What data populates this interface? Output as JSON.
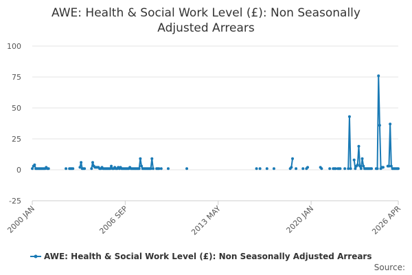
{
  "chart_data": {
    "type": "line",
    "title": "AWE: Health & Social Work Level (£): Non Seasonally Adjusted Arrears",
    "source": "Source:",
    "x": [
      "2000 JAN",
      "2000 FEB",
      "2000 MAR",
      "2000 APR",
      "2000 MAY",
      "2000 JUN",
      "2000 JUL",
      "2000 AUG",
      "2000 SEP",
      "2000 OCT",
      "2000 NOV",
      "2000 DEC",
      "2001 JAN",
      "2001 FEB",
      "2001 MAR",
      "2001 APR",
      "2001 MAY",
      "2001 JUN",
      "2001 JUL",
      "2001 AUG",
      "2001 SEP",
      "2001 OCT",
      "2001 NOV",
      "2001 DEC",
      "2002 JAN",
      "2002 FEB",
      "2002 MAR",
      "2002 APR",
      "2002 MAY",
      "2002 JUN",
      "2002 JUL",
      "2002 AUG",
      "2002 SEP",
      "2002 OCT",
      "2002 NOV",
      "2002 DEC",
      "2003 JAN",
      "2003 FEB",
      "2003 MAR",
      "2003 APR",
      "2003 MAY",
      "2003 JUN",
      "2003 JUL",
      "2003 AUG",
      "2003 SEP",
      "2003 OCT",
      "2003 NOV",
      "2003 DEC",
      "2004 JAN",
      "2004 FEB",
      "2004 MAR",
      "2004 APR",
      "2004 MAY",
      "2004 JUN",
      "2004 JUL",
      "2004 AUG",
      "2004 SEP",
      "2004 OCT",
      "2004 NOV",
      "2004 DEC",
      "2005 JAN",
      "2005 FEB",
      "2005 MAR",
      "2005 APR",
      "2005 MAY",
      "2005 JUN",
      "2005 JUL",
      "2005 AUG",
      "2005 SEP",
      "2005 OCT",
      "2005 NOV",
      "2005 DEC",
      "2006 JAN",
      "2006 FEB",
      "2006 MAR",
      "2006 APR",
      "2006 MAY",
      "2006 JUN",
      "2006 JUL",
      "2006 AUG",
      "2006 SEP",
      "2006 OCT",
      "2006 NOV",
      "2006 DEC",
      "2007 JAN",
      "2007 FEB",
      "2007 MAR",
      "2007 APR",
      "2007 MAY",
      "2007 JUN",
      "2007 JUL",
      "2007 AUG",
      "2007 SEP",
      "2007 OCT",
      "2007 NOV",
      "2007 DEC",
      "2008 JAN",
      "2008 FEB",
      "2008 MAR",
      "2008 APR",
      "2008 MAY",
      "2008 JUN",
      "2008 JUL",
      "2008 AUG",
      "2008 SEP",
      "2008 OCT",
      "2008 NOV",
      "2008 DEC",
      "2009 JAN",
      "2009 FEB",
      "2009 MAR",
      "2009 APR",
      "2009 MAY",
      "2009 JUN",
      "2009 JUL",
      "2009 AUG",
      "2009 SEP",
      "2009 OCT",
      "2009 NOV",
      "2009 DEC",
      "2010 JAN",
      "2010 FEB",
      "2010 MAR",
      "2010 APR",
      "2010 MAY",
      "2010 JUN",
      "2010 JUL",
      "2010 AUG",
      "2010 SEP",
      "2010 OCT",
      "2010 NOV",
      "2010 DEC",
      "2011 JAN",
      "2011 FEB",
      "2011 MAR",
      "2011 APR",
      "2011 MAY",
      "2011 JUN",
      "2011 JUL",
      "2011 AUG",
      "2011 SEP",
      "2011 OCT",
      "2011 NOV",
      "2011 DEC",
      "2012 JAN",
      "2012 FEB",
      "2012 MAR",
      "2012 APR",
      "2012 MAY",
      "2012 JUN",
      "2012 JUL",
      "2012 AUG",
      "2012 SEP",
      "2012 OCT",
      "2012 NOV",
      "2012 DEC",
      "2013 JAN",
      "2013 FEB",
      "2013 MAR",
      "2013 APR",
      "2013 MAY",
      "2013 JUN",
      "2013 JUL",
      "2013 AUG",
      "2013 SEP",
      "2013 OCT",
      "2013 NOV",
      "2013 DEC",
      "2014 JAN",
      "2014 FEB",
      "2014 MAR",
      "2014 APR",
      "2014 MAY",
      "2014 JUN",
      "2014 JUL",
      "2014 AUG",
      "2014 SEP",
      "2014 OCT",
      "2014 NOV",
      "2014 DEC",
      "2015 JAN",
      "2015 FEB",
      "2015 MAR",
      "2015 APR",
      "2015 MAY",
      "2015 JUN",
      "2015 JUL",
      "2015 AUG",
      "2015 SEP",
      "2015 OCT",
      "2015 NOV",
      "2015 DEC",
      "2016 JAN",
      "2016 FEB",
      "2016 MAR",
      "2016 APR",
      "2016 MAY",
      "2016 JUN",
      "2016 JUL",
      "2016 AUG",
      "2016 SEP",
      "2016 OCT",
      "2016 NOV",
      "2016 DEC",
      "2017 JAN",
      "2017 FEB",
      "2017 MAR",
      "2017 APR",
      "2017 MAY",
      "2017 JUN",
      "2017 JUL",
      "2017 AUG",
      "2017 SEP",
      "2017 OCT",
      "2017 NOV",
      "2017 DEC",
      "2018 JAN",
      "2018 FEB",
      "2018 MAR",
      "2018 APR",
      "2018 MAY",
      "2018 JUN",
      "2018 JUL",
      "2018 AUG",
      "2018 SEP",
      "2018 OCT",
      "2018 NOV",
      "2018 DEC",
      "2019 JAN",
      "2019 FEB",
      "2019 MAR",
      "2019 APR",
      "2019 MAY",
      "2019 JUN",
      "2019 JUL",
      "2019 AUG",
      "2019 SEP",
      "2019 OCT",
      "2019 NOV",
      "2019 DEC",
      "2020 JAN",
      "2020 FEB",
      "2020 MAR",
      "2020 APR",
      "2020 MAY",
      "2020 JUN",
      "2020 JUL",
      "2020 AUG",
      "2020 SEP",
      "2020 OCT",
      "2020 NOV",
      "2020 DEC",
      "2021 JAN",
      "2021 FEB",
      "2021 MAR",
      "2021 APR",
      "2021 MAY",
      "2021 JUN",
      "2021 JUL",
      "2021 AUG",
      "2021 SEP",
      "2021 OCT",
      "2021 NOV",
      "2021 DEC",
      "2022 JAN",
      "2022 FEB",
      "2022 MAR",
      "2022 APR",
      "2022 MAY",
      "2022 JUN",
      "2022 JUL",
      "2022 AUG",
      "2022 SEP",
      "2022 OCT",
      "2022 NOV",
      "2022 DEC",
      "2023 JAN",
      "2023 FEB",
      "2023 MAR",
      "2023 APR",
      "2023 MAY",
      "2023 JUN",
      "2023 JUL",
      "2023 AUG",
      "2023 SEP",
      "2023 OCT",
      "2023 NOV",
      "2023 DEC",
      "2024 JAN",
      "2024 FEB",
      "2024 MAR",
      "2024 APR",
      "2024 MAY",
      "2024 JUN",
      "2024 JUL",
      "2024 AUG",
      "2024 SEP",
      "2024 OCT",
      "2024 NOV",
      "2024 DEC",
      "2025 JAN",
      "2025 FEB",
      "2025 MAR",
      "2025 APR",
      "2025 MAY",
      "2025 JUN",
      "2025 JUL",
      "2025 AUG",
      "2025 SEP",
      "2025 OCT",
      "2025 NOV",
      "2025 DEC",
      "2026 JAN",
      "2026 FEB",
      "2026 MAR",
      "2026 APR"
    ],
    "series": [
      {
        "name": "AWE: Health & Social Work Level (£): Non Seasonally Adjusted Arrears",
        "color": "#1a7ab5",
        "values": [
          1,
          3,
          4,
          1,
          1,
          1,
          1,
          1,
          1,
          1,
          1,
          1,
          2,
          1,
          1,
          null,
          null,
          null,
          null,
          null,
          null,
          null,
          null,
          null,
          null,
          null,
          null,
          null,
          null,
          1,
          null,
          null,
          1,
          1,
          1,
          1,
          null,
          null,
          null,
          null,
          null,
          2,
          6,
          1,
          1,
          1,
          null,
          null,
          null,
          null,
          null,
          1,
          6,
          3,
          2,
          2,
          2,
          2,
          1,
          1,
          2,
          1,
          1,
          1,
          1,
          1,
          1,
          1,
          3,
          1,
          1,
          2,
          1,
          1,
          2,
          1,
          2,
          1,
          1,
          1,
          1,
          1,
          1,
          1,
          2,
          1,
          1,
          1,
          1,
          1,
          1,
          1,
          1,
          9,
          3,
          1,
          1,
          1,
          1,
          1,
          1,
          1,
          1,
          9,
          1,
          null,
          null,
          1,
          1,
          1,
          null,
          1,
          null,
          null,
          null,
          null,
          null,
          1,
          null,
          null,
          null,
          null,
          null,
          null,
          null,
          null,
          null,
          null,
          null,
          null,
          null,
          null,
          null,
          1,
          null,
          null,
          null,
          null,
          null,
          null,
          null,
          null,
          null,
          null,
          null,
          null,
          null,
          null,
          null,
          null,
          null,
          null,
          null,
          null,
          null,
          null,
          null,
          null,
          null,
          null,
          null,
          null,
          null,
          null,
          null,
          null,
          null,
          null,
          null,
          null,
          null,
          null,
          null,
          null,
          null,
          null,
          null,
          null,
          null,
          null,
          null,
          null,
          null,
          null,
          null,
          null,
          null,
          null,
          null,
          null,
          null,
          null,
          null,
          1,
          null,
          null,
          1,
          null,
          null,
          null,
          null,
          null,
          1,
          null,
          null,
          null,
          null,
          null,
          1,
          null,
          null,
          null,
          null,
          null,
          null,
          null,
          null,
          null,
          null,
          null,
          null,
          null,
          1,
          2,
          9,
          null,
          null,
          1,
          null,
          null,
          null,
          null,
          null,
          1,
          null,
          null,
          1,
          2,
          null,
          null,
          null,
          null,
          null,
          null,
          null,
          null,
          null,
          null,
          2,
          1,
          null,
          null,
          null,
          null,
          null,
          null,
          1,
          null,
          null,
          1,
          1,
          1,
          null,
          1,
          1,
          1,
          null,
          null,
          null,
          1,
          null,
          null,
          1,
          43,
          1,
          null,
          null,
          8,
          1,
          3,
          4,
          19,
          3,
          1,
          9,
          3,
          1,
          1,
          1,
          1,
          1,
          1,
          1,
          null,
          null,
          null,
          1,
          1,
          76,
          36,
          1,
          2,
          2,
          null,
          null,
          null,
          3,
          3,
          37,
          3,
          1,
          1,
          1,
          1,
          1,
          1
        ]
      }
    ],
    "xticks": [
      "2000 JAN",
      "2006 SEP",
      "2013 MAY",
      "2020 JAN",
      "2026 APR"
    ],
    "ylim": [
      -25,
      100
    ],
    "yticks": [
      -25,
      0,
      25,
      50,
      75,
      100
    ],
    "grid": true,
    "legend": "bottom"
  }
}
